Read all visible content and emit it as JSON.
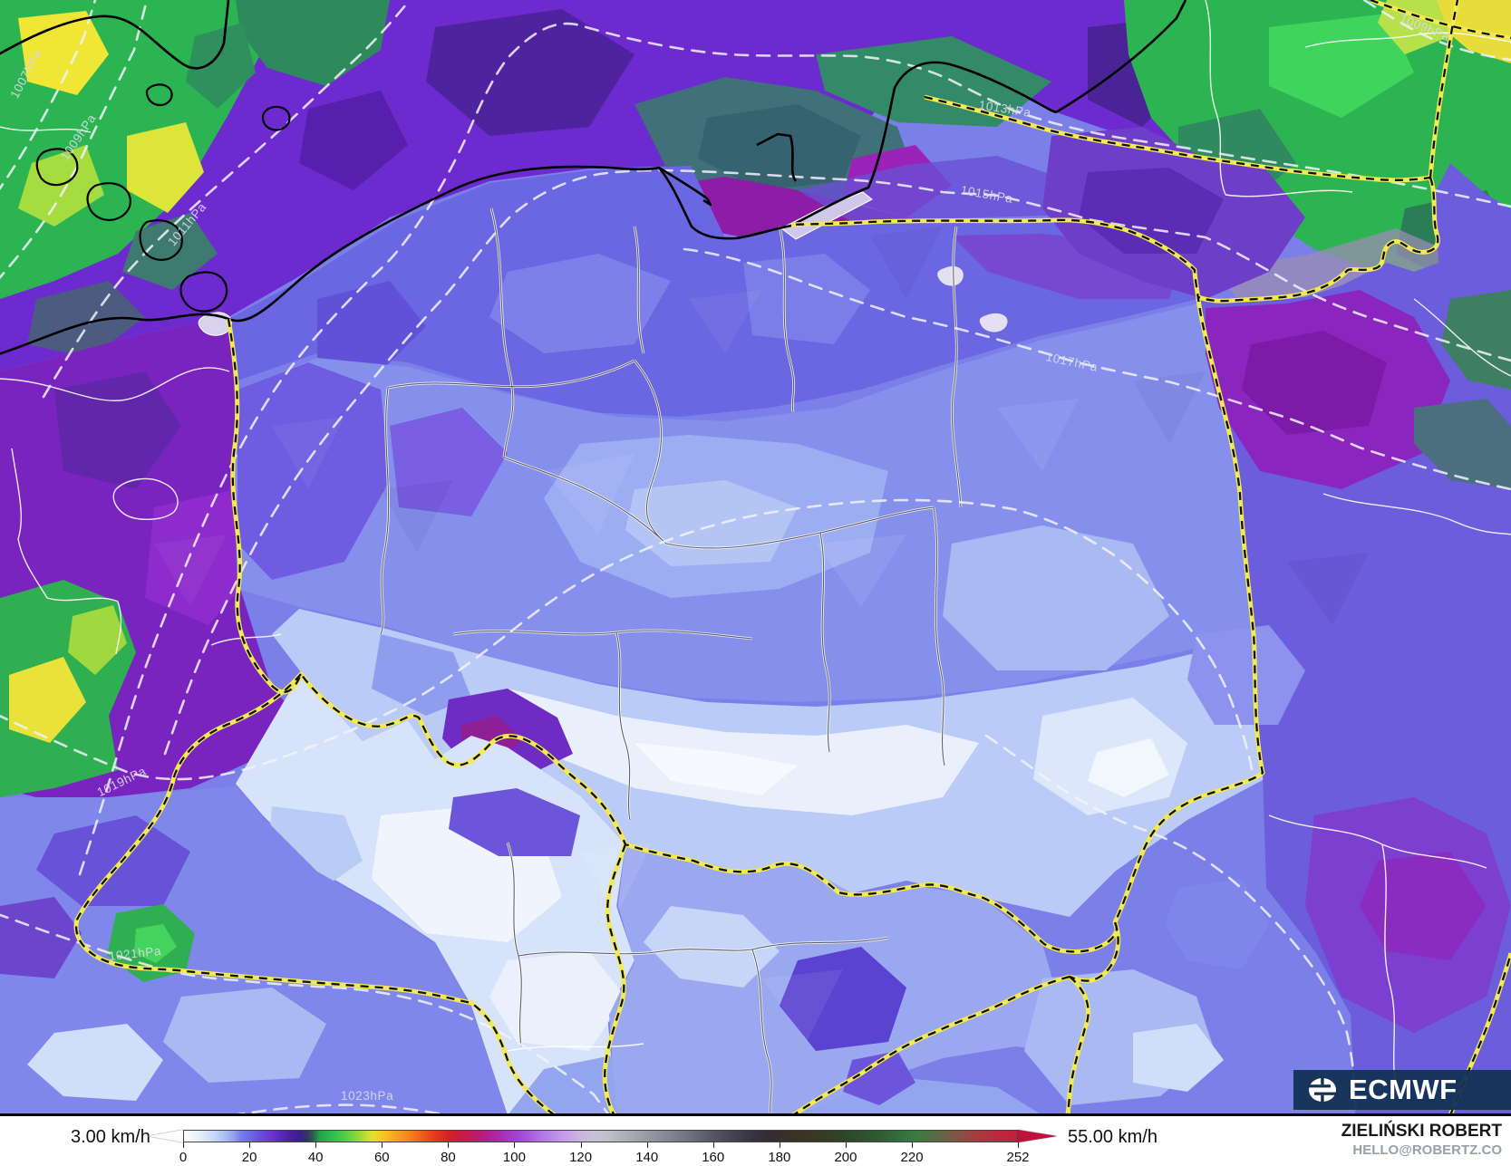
{
  "branding": {
    "logo_text": "ECMWF",
    "author": "ZIELIŃSKI ROBERT",
    "contact": "HELLO@ROBERTZ.CO"
  },
  "legend": {
    "min_label": "3.00 km/h",
    "max_label": "55.00 km/h",
    "ticks": [
      0,
      20,
      40,
      60,
      80,
      100,
      120,
      140,
      160,
      180,
      200,
      220,
      252
    ],
    "scale_max": 252,
    "colorbar": {
      "stops": [
        [
          0,
          "#ffffff"
        ],
        [
          5,
          "#e3edfa"
        ],
        [
          9,
          "#c9d9f6"
        ],
        [
          12,
          "#aec1f3"
        ],
        [
          15,
          "#93a2ee"
        ],
        [
          17,
          "#7a80e8"
        ],
        [
          20,
          "#6c68e2"
        ],
        [
          23,
          "#6a4fd8"
        ],
        [
          26,
          "#6b38d0"
        ],
        [
          29,
          "#5a2bbc"
        ],
        [
          32,
          "#49219f"
        ],
        [
          35,
          "#3a1f8e"
        ],
        [
          37,
          "#343263"
        ],
        [
          39,
          "#2f5a50"
        ],
        [
          41,
          "#27a04a"
        ],
        [
          45,
          "#30bc4f"
        ],
        [
          49,
          "#59cc47"
        ],
        [
          53,
          "#97d93a"
        ],
        [
          57,
          "#dfe22d"
        ],
        [
          60,
          "#f6c825"
        ],
        [
          64,
          "#f6a321"
        ],
        [
          68,
          "#f4851d"
        ],
        [
          72,
          "#ee5e1c"
        ],
        [
          76,
          "#e33a1e"
        ],
        [
          80,
          "#d62127"
        ],
        [
          84,
          "#c81a45"
        ],
        [
          88,
          "#bc1c68"
        ],
        [
          92,
          "#b12090"
        ],
        [
          96,
          "#a72fb2"
        ],
        [
          100,
          "#a140cc"
        ],
        [
          104,
          "#a558dc"
        ],
        [
          108,
          "#b274e5"
        ],
        [
          112,
          "#bd8ce9"
        ],
        [
          116,
          "#c6a2e8"
        ],
        [
          120,
          "#cab6e0"
        ],
        [
          124,
          "#c8c0d6"
        ],
        [
          128,
          "#c0c0cc"
        ],
        [
          134,
          "#adadb9"
        ],
        [
          140,
          "#9a9aa6"
        ],
        [
          147,
          "#848492"
        ],
        [
          154,
          "#6c6c7a"
        ],
        [
          160,
          "#565564"
        ],
        [
          166,
          "#454351"
        ],
        [
          172,
          "#373440"
        ],
        [
          177,
          "#332d32"
        ],
        [
          182,
          "#38302a"
        ],
        [
          188,
          "#3c3525"
        ],
        [
          194,
          "#373c24"
        ],
        [
          200,
          "#2e4629"
        ],
        [
          206,
          "#2e522f"
        ],
        [
          212,
          "#306036"
        ],
        [
          218,
          "#34743d"
        ],
        [
          222,
          "#3c7a40"
        ],
        [
          228,
          "#5e6a41"
        ],
        [
          234,
          "#825342"
        ],
        [
          240,
          "#a63c41"
        ],
        [
          246,
          "#ba2a40"
        ],
        [
          252,
          "#c2203e"
        ]
      ],
      "left_tip_color": "#fdfdfe",
      "right_tip_color": "#bf1238"
    }
  },
  "map": {
    "isobar_labels": [
      {
        "text": "1007hPa"
      },
      {
        "text": "1009hPa"
      },
      {
        "text": "1011hPa"
      },
      {
        "text": "1013hPa"
      },
      {
        "text": "1015hPa"
      },
      {
        "text": "1017hPa"
      },
      {
        "text": "1019hPa"
      },
      {
        "text": "1021hPa"
      },
      {
        "text": "1023hPa"
      },
      {
        "text": "1009hPa"
      }
    ],
    "palette": {
      "country_border_yellow": "#f2ea52",
      "country_border_black": "#111111",
      "coastline": "#000000",
      "admin_border": "#5d5d66",
      "isobar_dash": "#f2f2fa",
      "logo_box": "#133154"
    }
  }
}
